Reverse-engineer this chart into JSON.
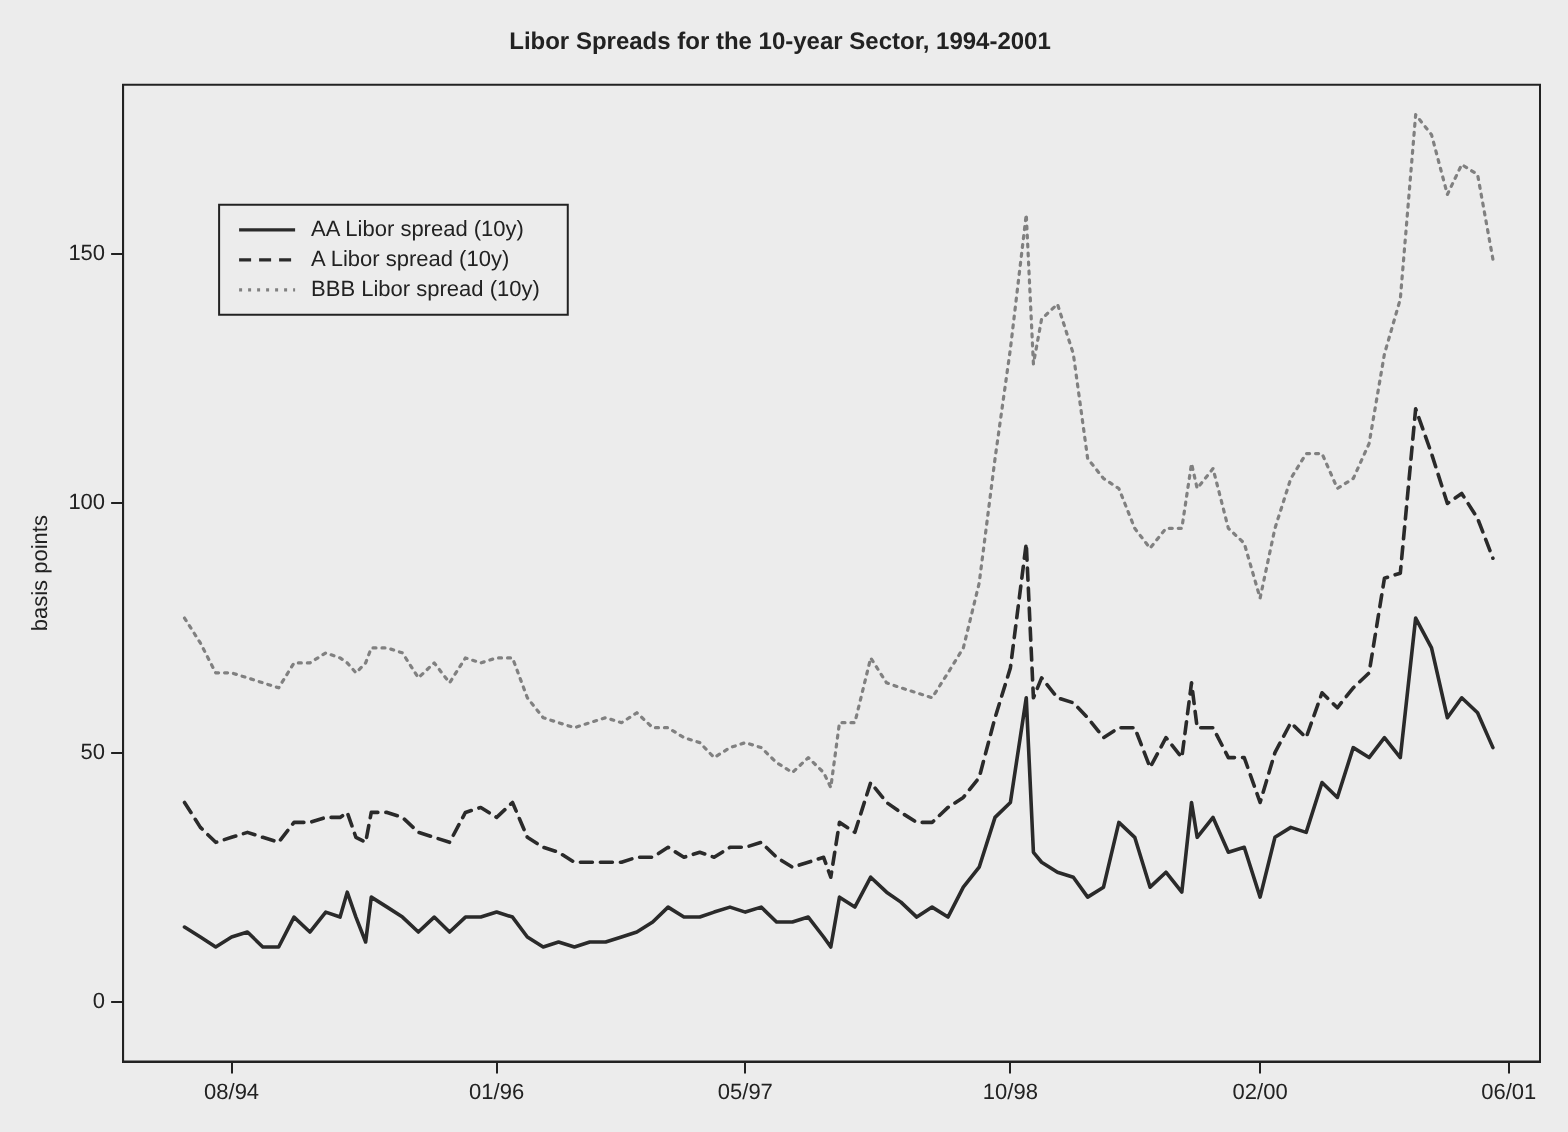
{
  "chart_data": {
    "type": "line",
    "title": "Libor Spreads for the 10-year Sector, 1994-2001",
    "ylabel": "basis points",
    "legend": "top left",
    "marker": "none",
    "xlim": [
      "1994-01",
      "2001-08"
    ],
    "ylim": [
      -12,
      184
    ],
    "yticks": [
      0,
      50,
      100,
      150
    ],
    "xticks": [
      {
        "value": "1994-08",
        "label": "08/94"
      },
      {
        "value": "1996-01",
        "label": "01/96"
      },
      {
        "value": "1997-05",
        "label": "05/97"
      },
      {
        "value": "1998-10",
        "label": "10/98"
      },
      {
        "value": "2000-02",
        "label": "02/00"
      },
      {
        "value": "2001-06",
        "label": "06/01"
      }
    ],
    "x": [
      "1994-05",
      "1994-06",
      "1994-07",
      "1994-08",
      "1994-09",
      "1994-10",
      "1994-11",
      "1994-12",
      "1995-01",
      "1995-02",
      "1995-03",
      "1995-03-15",
      "1995-04",
      "1995-04-20",
      "1995-05",
      "1995-06",
      "1995-07",
      "1995-08",
      "1995-09",
      "1995-10",
      "1995-11",
      "1995-12",
      "1996-01",
      "1996-02",
      "1996-03",
      "1996-04",
      "1996-05",
      "1996-06",
      "1996-07",
      "1996-08",
      "1996-09",
      "1996-10",
      "1996-11",
      "1996-12",
      "1997-01",
      "1997-02",
      "1997-03",
      "1997-04",
      "1997-05",
      "1997-06",
      "1997-07",
      "1997-08",
      "1997-09",
      "1997-10",
      "1997-10-15",
      "1997-11",
      "1997-12",
      "1998-01",
      "1998-02",
      "1998-03",
      "1998-04",
      "1998-05",
      "1998-06",
      "1998-07",
      "1998-08",
      "1998-09",
      "1998-10",
      "1998-11",
      "1998-11-15",
      "1998-12",
      "1999-01",
      "1999-02",
      "1999-03",
      "1999-04",
      "1999-05",
      "1999-06",
      "1999-07",
      "1999-08",
      "1999-09",
      "1999-09-20",
      "1999-10",
      "1999-11",
      "1999-12",
      "2000-01",
      "2000-02",
      "2000-03",
      "2000-04",
      "2000-05",
      "2000-06",
      "2000-07",
      "2000-08",
      "2000-09",
      "2000-10",
      "2000-11",
      "2000-12",
      "2001-01",
      "2001-02",
      "2001-03",
      "2001-04",
      "2001-05"
    ],
    "series": [
      {
        "name": "AA Libor spread (10y)",
        "color": "#2a2a2a",
        "line_style": "solid",
        "values": [
          15,
          13,
          11,
          13,
          14,
          11,
          11,
          17,
          14,
          18,
          17,
          22,
          17,
          12,
          21,
          19,
          17,
          14,
          17,
          14,
          17,
          17,
          18,
          17,
          13,
          11,
          12,
          11,
          12,
          12,
          13,
          14,
          16,
          19,
          17,
          17,
          18,
          19,
          18,
          19,
          16,
          16,
          17,
          13,
          11,
          21,
          19,
          25,
          22,
          20,
          17,
          19,
          17,
          23,
          27,
          37,
          40,
          61,
          30,
          28,
          26,
          25,
          21,
          23,
          36,
          33,
          23,
          26,
          22,
          40,
          33,
          37,
          30,
          31,
          21,
          33,
          35,
          34,
          44,
          41,
          51,
          49,
          53,
          49,
          77,
          71,
          57,
          61,
          58,
          51
        ]
      },
      {
        "name": "A Libor spread (10y)",
        "color": "#2a2a2a",
        "line_style": "dashed",
        "values": [
          40,
          35,
          32,
          33,
          34,
          33,
          32,
          36,
          36,
          37,
          37,
          38,
          33,
          32,
          38,
          38,
          37,
          34,
          33,
          32,
          38,
          39,
          37,
          40,
          33,
          31,
          30,
          28,
          28,
          28,
          28,
          29,
          29,
          31,
          29,
          30,
          29,
          31,
          31,
          32,
          29,
          27,
          28,
          29,
          25,
          36,
          34,
          44,
          40,
          38,
          36,
          36,
          39,
          41,
          45,
          57,
          67,
          92,
          61,
          65,
          61,
          60,
          57,
          53,
          55,
          55,
          47,
          53,
          49,
          64,
          55,
          55,
          49,
          49,
          40,
          50,
          56,
          53,
          62,
          59,
          63,
          66,
          85,
          86,
          119,
          110,
          100,
          102,
          97,
          89
        ]
      },
      {
        "name": "BBB Libor spread (10y)",
        "color": "#808080",
        "line_style": "dotted",
        "values": [
          77,
          72,
          66,
          66,
          65,
          64,
          63,
          68,
          68,
          70,
          69,
          68,
          66,
          68,
          71,
          71,
          70,
          65,
          68,
          64,
          69,
          68,
          69,
          69,
          61,
          57,
          56,
          55,
          56,
          57,
          56,
          58,
          55,
          55,
          53,
          52,
          49,
          51,
          52,
          51,
          48,
          46,
          49,
          46,
          43,
          56,
          56,
          69,
          64,
          63,
          62,
          61,
          66,
          71,
          84,
          109,
          131,
          158,
          128,
          137,
          140,
          130,
          109,
          105,
          103,
          95,
          91,
          95,
          95,
          108,
          103,
          107,
          95,
          92,
          81,
          95,
          105,
          110,
          110,
          103,
          105,
          112,
          130,
          141,
          178,
          174,
          162,
          168,
          166,
          149
        ]
      }
    ]
  }
}
